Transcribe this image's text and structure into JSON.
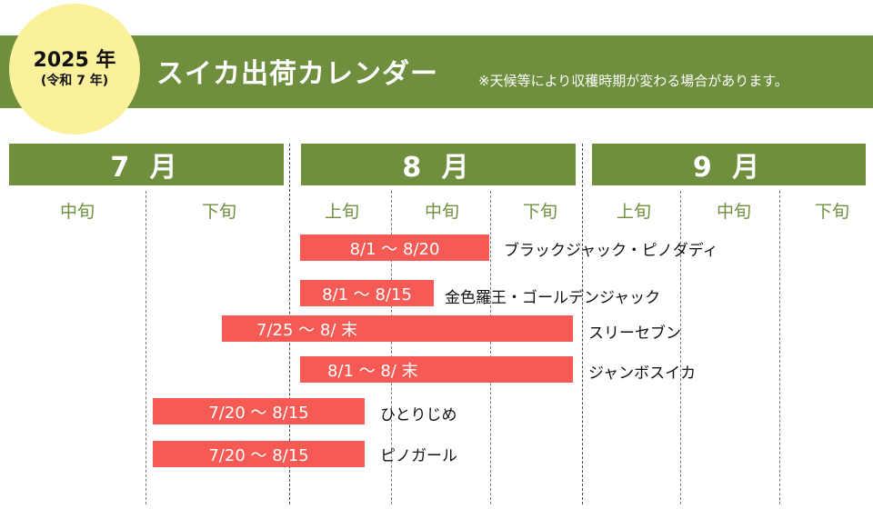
{
  "header": {
    "year_main": "2025 年",
    "year_sub": "(令和 7 年)",
    "title": "スイカ出荷カレンダー",
    "note": "※天候等により収穫時期が変わる場合があります。"
  },
  "months": [
    "7 月",
    "8 月",
    "9 月"
  ],
  "periods": [
    "中旬",
    "下旬",
    "上旬",
    "中旬",
    "下旬",
    "上旬",
    "中旬",
    "下旬"
  ],
  "varieties": [
    {
      "range": "8/1 ～ 8/20",
      "name": "ブラックジャック・ピノダディ"
    },
    {
      "range": "8/1 ～ 8/15",
      "name": "金色羅王・ゴールデンジャック"
    },
    {
      "range": "7/25 ～ 8/ 末",
      "name": "スリーセブン"
    },
    {
      "range": "8/1 ～ 8/ 末",
      "name": "ジャンボスイカ"
    },
    {
      "range": "7/20 ～ 8/15",
      "name": "ひとりじめ"
    },
    {
      "range": "7/20 ～ 8/15",
      "name": "ピノガール"
    }
  ],
  "colors": {
    "green": "#6f8f3e",
    "yellow": "#fbf19a",
    "bar": "#f55a55"
  }
}
